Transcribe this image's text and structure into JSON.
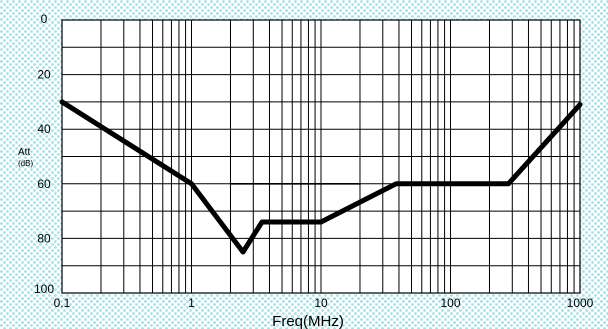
{
  "colors": {
    "background": "#ffffff",
    "dots": "#9fe3e8",
    "plot_area": "#ffffff",
    "grid": "#000000",
    "curve": "#000000"
  },
  "chart_data": {
    "type": "line",
    "title": "",
    "xlabel": "Freq(MHz)",
    "ylabel": "Att",
    "ylabel_unit": "(dB)",
    "x_scale": "log",
    "xlim": [
      0.1,
      1000
    ],
    "ylim": [
      0,
      100
    ],
    "y_inverted": true,
    "grid": true,
    "x_ticks": [
      "0.1",
      "1",
      "10",
      "100",
      "1000"
    ],
    "y_ticks": [
      "0",
      "20",
      "40",
      "60",
      "80",
      "100"
    ],
    "series": [
      {
        "x": [
          0.1,
          1,
          2.5,
          3.5,
          10,
          38,
          280,
          1000
        ],
        "y": [
          30,
          60,
          85,
          74,
          74,
          60,
          60,
          31
        ],
        "line": "thick"
      },
      {
        "x": [
          2,
          20
        ],
        "y": [
          60,
          60
        ],
        "line": "thin"
      }
    ]
  }
}
